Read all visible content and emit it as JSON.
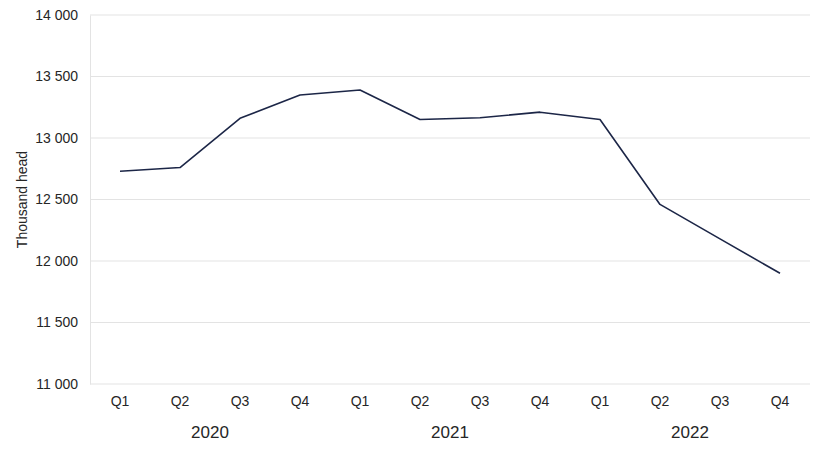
{
  "chart_data": {
    "type": "line",
    "y_label": "Thousand head",
    "categories": [
      "Q1",
      "Q2",
      "Q3",
      "Q4",
      "Q1",
      "Q2",
      "Q3",
      "Q4",
      "Q1",
      "Q2",
      "Q3",
      "Q4"
    ],
    "year_labels": [
      "2020",
      "2021",
      "2022"
    ],
    "values": [
      12730,
      12760,
      13160,
      13350,
      13390,
      13150,
      13165,
      13210,
      13150,
      12460,
      12180,
      11900
    ],
    "color": "#1c2647",
    "ylim": [
      11000,
      14000
    ],
    "yticks": [
      {
        "value": 11000,
        "label": "11 000"
      },
      {
        "value": 11500,
        "label": "11 500"
      },
      {
        "value": 12000,
        "label": "12 000"
      },
      {
        "value": 12500,
        "label": "12 500"
      },
      {
        "value": 13000,
        "label": "13 000"
      },
      {
        "value": 13500,
        "label": "13 500"
      },
      {
        "value": 14000,
        "label": "14 000"
      }
    ],
    "grid": true
  }
}
